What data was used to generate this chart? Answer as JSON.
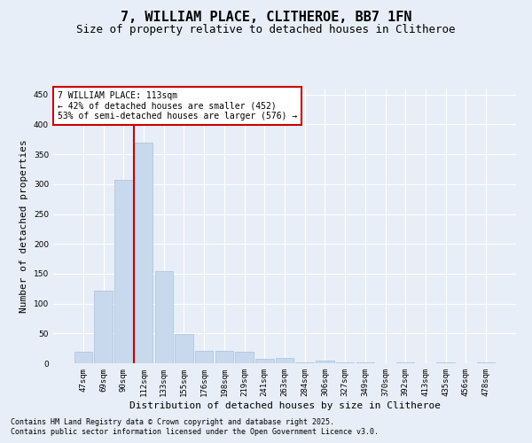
{
  "title": "7, WILLIAM PLACE, CLITHEROE, BB7 1FN",
  "subtitle": "Size of property relative to detached houses in Clitheroe",
  "xlabel": "Distribution of detached houses by size in Clitheroe",
  "ylabel": "Number of detached properties",
  "categories": [
    "47sqm",
    "69sqm",
    "90sqm",
    "112sqm",
    "133sqm",
    "155sqm",
    "176sqm",
    "198sqm",
    "219sqm",
    "241sqm",
    "263sqm",
    "284sqm",
    "306sqm",
    "327sqm",
    "349sqm",
    "370sqm",
    "392sqm",
    "413sqm",
    "435sqm",
    "456sqm",
    "478sqm"
  ],
  "values": [
    20,
    122,
    307,
    370,
    155,
    49,
    21,
    21,
    20,
    8,
    9,
    1,
    5,
    1,
    1,
    0,
    2,
    0,
    1,
    0,
    2
  ],
  "bar_color": "#c8d9ee",
  "bar_edge_color": "#a8c0dc",
  "redline_index": 3,
  "annotation_line1": "7 WILLIAM PLACE: 113sqm",
  "annotation_line2": "← 42% of detached houses are smaller (452)",
  "annotation_line3": "53% of semi-detached houses are larger (576) →",
  "annotation_box_facecolor": "#ffffff",
  "annotation_box_edgecolor": "#cc0000",
  "redline_color": "#cc0000",
  "ylim_max": 460,
  "yticks": [
    0,
    50,
    100,
    150,
    200,
    250,
    300,
    350,
    400,
    450
  ],
  "background_color": "#e8eef7",
  "grid_color": "#ffffff",
  "footnote1": "Contains HM Land Registry data © Crown copyright and database right 2025.",
  "footnote2": "Contains public sector information licensed under the Open Government Licence v3.0.",
  "title_fontsize": 11,
  "subtitle_fontsize": 9,
  "xlabel_fontsize": 8,
  "ylabel_fontsize": 8,
  "tick_fontsize": 6.5,
  "annotation_fontsize": 7,
  "footnote_fontsize": 6
}
